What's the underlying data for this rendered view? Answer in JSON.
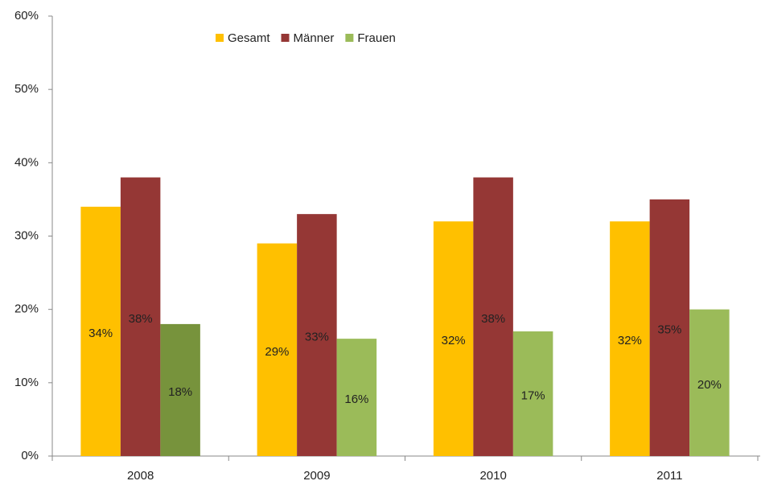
{
  "chart_data": {
    "type": "bar",
    "categories": [
      "2008",
      "2009",
      "2010",
      "2011"
    ],
    "series": [
      {
        "name": "Gesamt",
        "color": "#ffc000",
        "values": [
          34,
          29,
          32,
          32
        ],
        "value_labels": [
          "34%",
          "29%",
          "32%",
          "32%"
        ]
      },
      {
        "name": "Männer",
        "color": "#953735",
        "values": [
          38,
          33,
          38,
          35
        ],
        "value_labels": [
          "38%",
          "33%",
          "38%",
          "35%"
        ]
      },
      {
        "name": "Frauen",
        "color": "#9bbb59",
        "colors": [
          "#77933c",
          "#9bbb59",
          "#9bbb59",
          "#9bbb59"
        ],
        "values": [
          18,
          16,
          17,
          20
        ],
        "value_labels": [
          "18%",
          "16%",
          "17%",
          "20%"
        ]
      }
    ],
    "ylim": [
      0,
      60
    ],
    "yticks": [
      {
        "value": 0,
        "label": "0%"
      },
      {
        "value": 10,
        "label": "10%"
      },
      {
        "value": 20,
        "label": "20%"
      },
      {
        "value": 30,
        "label": "30%"
      },
      {
        "value": 40,
        "label": "40%"
      },
      {
        "value": 50,
        "label": "50%"
      },
      {
        "value": 60,
        "label": "60%"
      }
    ],
    "grid": false,
    "legend": "top"
  }
}
